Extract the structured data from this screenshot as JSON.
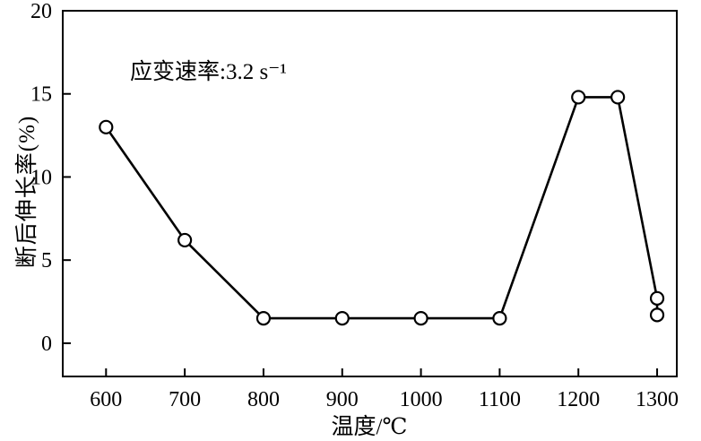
{
  "chart_data": {
    "type": "line",
    "title": "",
    "xlabel": "温度/℃",
    "ylabel": "断后伸长率(%)",
    "annotation": "应变速率:3.2 s⁻¹",
    "x_ticks": [
      600,
      700,
      800,
      900,
      1000,
      1100,
      1200,
      1300
    ],
    "y_ticks": [
      0,
      5,
      10,
      15,
      20
    ],
    "xlim": [
      545,
      1325
    ],
    "ylim": [
      -2,
      20
    ],
    "grid": false,
    "legend": "none",
    "marker": "open-circle",
    "line_color": "#000000",
    "series": [
      {
        "name": "断后伸长率",
        "x": [
          600,
          700,
          800,
          900,
          1000,
          1100,
          1200,
          1250,
          1300,
          1300
        ],
        "y": [
          13.0,
          6.2,
          1.5,
          1.5,
          1.5,
          1.5,
          14.8,
          14.8,
          2.7,
          1.7
        ]
      }
    ]
  }
}
